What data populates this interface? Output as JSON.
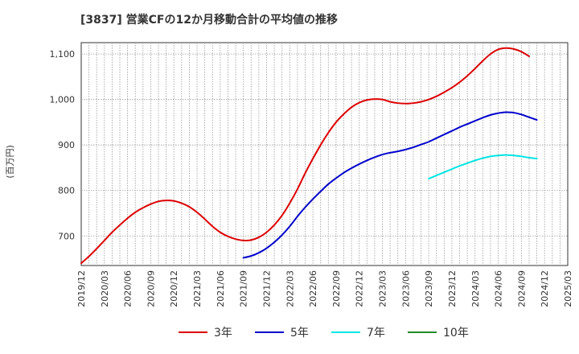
{
  "chart_data": {
    "type": "line",
    "title": "[3837]  営業CFの12か月移動合計の平均値の推移",
    "ylabel": "(百万円)",
    "xlabel": "",
    "ylim": [
      635,
      1125
    ],
    "yticks": [
      700,
      800,
      900,
      1000,
      1100
    ],
    "ytick_labels": [
      "700",
      "800",
      "900",
      "1,000",
      "1,100"
    ],
    "xlim": [
      "2019-12",
      "2025-03"
    ],
    "xtick_labels": [
      "2019/12",
      "2020/03",
      "2020/06",
      "2020/09",
      "2020/12",
      "2021/03",
      "2021/06",
      "2021/09",
      "2021/12",
      "2022/03",
      "2022/06",
      "2022/09",
      "2022/12",
      "2023/03",
      "2023/06",
      "2023/09",
      "2023/12",
      "2024/03",
      "2024/06",
      "2024/09",
      "2024/12",
      "2025/03"
    ],
    "grid": true,
    "legend_position": "bottom",
    "series": [
      {
        "name": "3年",
        "color": "#dd0000",
        "points": [
          [
            "2019-12",
            640
          ],
          [
            "2020-01",
            655
          ],
          [
            "2020-02",
            672
          ],
          [
            "2020-03",
            690
          ],
          [
            "2020-04",
            708
          ],
          [
            "2020-05",
            724
          ],
          [
            "2020-06",
            739
          ],
          [
            "2020-07",
            752
          ],
          [
            "2020-08",
            762
          ],
          [
            "2020-09",
            770
          ],
          [
            "2020-10",
            776
          ],
          [
            "2020-11",
            778
          ],
          [
            "2020-12",
            777
          ],
          [
            "2021-01",
            772
          ],
          [
            "2021-02",
            764
          ],
          [
            "2021-03",
            752
          ],
          [
            "2021-04",
            737
          ],
          [
            "2021-05",
            721
          ],
          [
            "2021-06",
            708
          ],
          [
            "2021-07",
            699
          ],
          [
            "2021-08",
            693
          ],
          [
            "2021-09",
            690
          ],
          [
            "2021-10",
            691
          ],
          [
            "2021-11",
            697
          ],
          [
            "2021-12",
            708
          ],
          [
            "2022-01",
            724
          ],
          [
            "2022-02",
            745
          ],
          [
            "2022-03",
            772
          ],
          [
            "2022-04",
            803
          ],
          [
            "2022-05",
            838
          ],
          [
            "2022-06",
            870
          ],
          [
            "2022-07",
            900
          ],
          [
            "2022-08",
            927
          ],
          [
            "2022-09",
            950
          ],
          [
            "2022-10",
            968
          ],
          [
            "2022-11",
            983
          ],
          [
            "2022-12",
            993
          ],
          [
            "2023-01",
            999
          ],
          [
            "2023-02",
            1001
          ],
          [
            "2023-03",
            1000
          ],
          [
            "2023-04",
            995
          ],
          [
            "2023-05",
            992
          ],
          [
            "2023-06",
            991
          ],
          [
            "2023-07",
            992
          ],
          [
            "2023-08",
            995
          ],
          [
            "2023-09",
            1000
          ],
          [
            "2023-10",
            1007
          ],
          [
            "2023-11",
            1016
          ],
          [
            "2023-12",
            1026
          ],
          [
            "2024-01",
            1038
          ],
          [
            "2024-02",
            1052
          ],
          [
            "2024-03",
            1068
          ],
          [
            "2024-04",
            1085
          ],
          [
            "2024-05",
            1100
          ],
          [
            "2024-06",
            1110
          ],
          [
            "2024-07",
            1113
          ],
          [
            "2024-08",
            1111
          ],
          [
            "2024-09",
            1105
          ],
          [
            "2024-10",
            1095
          ]
        ]
      },
      {
        "name": "5年",
        "color": "#0000cc",
        "points": [
          [
            "2021-09",
            652
          ],
          [
            "2021-10",
            656
          ],
          [
            "2021-11",
            663
          ],
          [
            "2021-12",
            673
          ],
          [
            "2022-01",
            686
          ],
          [
            "2022-02",
            702
          ],
          [
            "2022-03",
            721
          ],
          [
            "2022-04",
            743
          ],
          [
            "2022-05",
            763
          ],
          [
            "2022-06",
            781
          ],
          [
            "2022-07",
            798
          ],
          [
            "2022-08",
            814
          ],
          [
            "2022-09",
            827
          ],
          [
            "2022-10",
            839
          ],
          [
            "2022-11",
            849
          ],
          [
            "2022-12",
            858
          ],
          [
            "2023-01",
            866
          ],
          [
            "2023-02",
            873
          ],
          [
            "2023-03",
            879
          ],
          [
            "2023-04",
            883
          ],
          [
            "2023-05",
            886
          ],
          [
            "2023-06",
            890
          ],
          [
            "2023-07",
            895
          ],
          [
            "2023-08",
            901
          ],
          [
            "2023-09",
            907
          ],
          [
            "2023-10",
            915
          ],
          [
            "2023-11",
            923
          ],
          [
            "2023-12",
            931
          ],
          [
            "2024-01",
            939
          ],
          [
            "2024-02",
            946
          ],
          [
            "2024-03",
            953
          ],
          [
            "2024-04",
            960
          ],
          [
            "2024-05",
            966
          ],
          [
            "2024-06",
            970
          ],
          [
            "2024-07",
            972
          ],
          [
            "2024-08",
            971
          ],
          [
            "2024-09",
            967
          ],
          [
            "2024-10",
            961
          ],
          [
            "2024-11",
            955
          ]
        ]
      },
      {
        "name": "7年",
        "color": "#00e5e5",
        "points": [
          [
            "2023-09",
            826
          ],
          [
            "2023-10",
            833
          ],
          [
            "2023-11",
            840
          ],
          [
            "2023-12",
            847
          ],
          [
            "2024-01",
            854
          ],
          [
            "2024-02",
            860
          ],
          [
            "2024-03",
            866
          ],
          [
            "2024-04",
            871
          ],
          [
            "2024-05",
            875
          ],
          [
            "2024-06",
            877
          ],
          [
            "2024-07",
            878
          ],
          [
            "2024-08",
            877
          ],
          [
            "2024-09",
            875
          ],
          [
            "2024-10",
            872
          ],
          [
            "2024-11",
            870
          ]
        ]
      },
      {
        "name": "10年",
        "color": "#228b22",
        "points": []
      }
    ]
  }
}
